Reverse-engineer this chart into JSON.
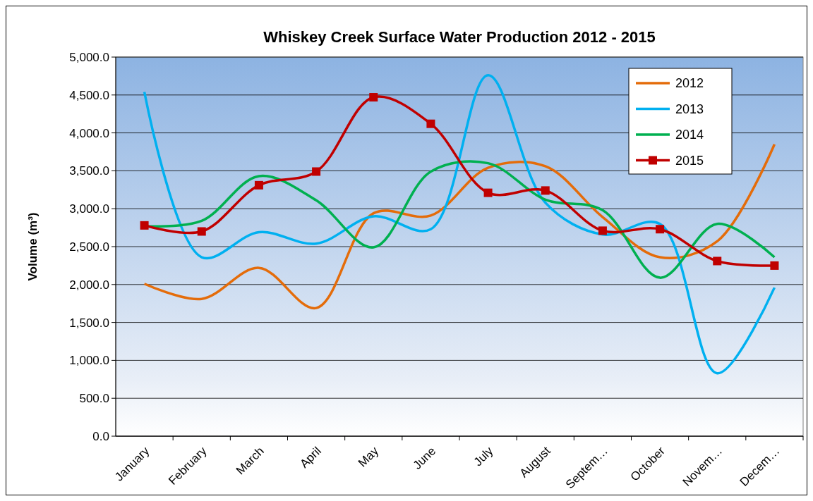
{
  "chart_data": {
    "type": "line",
    "title": "Whiskey Creek Surface Water Production 2012 - 2015",
    "ylabel": "Volume (m³)",
    "categories": [
      "January",
      "February",
      "March",
      "April",
      "May",
      "June",
      "July",
      "August",
      "Septem…",
      "October",
      "Novem…",
      "Decem…"
    ],
    "series": [
      {
        "name": "2012",
        "color": "#e46c0a",
        "values": [
          2010,
          1810,
          2220,
          1690,
          2940,
          2910,
          3540,
          3560,
          2890,
          2360,
          2570,
          3850
        ]
      },
      {
        "name": "2013",
        "color": "#00b0f0",
        "values": [
          4540,
          2360,
          2690,
          2540,
          2900,
          2730,
          4760,
          3080,
          2660,
          2800,
          830,
          1960
        ]
      },
      {
        "name": "2014",
        "color": "#00b050",
        "values": [
          2770,
          2840,
          3430,
          3110,
          2490,
          3490,
          3600,
          3120,
          2980,
          2090,
          2800,
          2360
        ]
      },
      {
        "name": "2015",
        "color": "#c00000",
        "marker": "square",
        "values": [
          2780,
          2700,
          3310,
          3490,
          4470,
          4120,
          3210,
          3240,
          2710,
          2730,
          2310,
          2250
        ]
      }
    ],
    "ylim": [
      0,
      5000
    ],
    "yticks": [
      {
        "value": 0,
        "label": "0.0"
      },
      {
        "value": 500,
        "label": "500.0"
      },
      {
        "value": 1000,
        "label": "1,000.0"
      },
      {
        "value": 1500,
        "label": "1,500.0"
      },
      {
        "value": 2000,
        "label": "2,000.0"
      },
      {
        "value": 2500,
        "label": "2,500.0"
      },
      {
        "value": 3000,
        "label": "3,000.0"
      },
      {
        "value": 3500,
        "label": "3,500.0"
      },
      {
        "value": 4000,
        "label": "4,000.0"
      },
      {
        "value": 4500,
        "label": "4,500.0"
      },
      {
        "value": 5000,
        "label": "5,000.0"
      }
    ],
    "grid": "y",
    "legend": "top right",
    "marker": "none",
    "line_style": "solid"
  }
}
